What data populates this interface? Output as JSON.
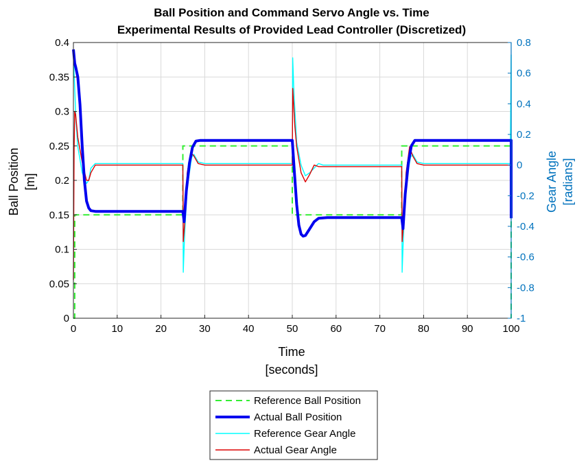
{
  "chart_data": {
    "type": "line",
    "title": "Ball Position and Command Servo Angle vs. Time",
    "subtitle": "Experimental Results of Provided Lead Controller (Discretized)",
    "xlabel": "Time",
    "xlabel_unit": "[seconds]",
    "ylabel": "Ball Position",
    "ylabel_unit": "[m]",
    "y2label": "Gear Angle",
    "y2label_unit": "[radians]",
    "xlim": [
      0,
      100
    ],
    "ylim": [
      0,
      0.4
    ],
    "y2lim": [
      -1,
      0.8
    ],
    "xticks": [
      "0",
      "10",
      "20",
      "30",
      "40",
      "50",
      "60",
      "70",
      "80",
      "90",
      "100"
    ],
    "yticks": [
      "0",
      "0.05",
      "0.1",
      "0.15",
      "0.2",
      "0.25",
      "0.3",
      "0.35",
      "0.4"
    ],
    "y2ticks": [
      "-1",
      "-0.8",
      "-0.6",
      "-0.4",
      "-0.2",
      "0",
      "0.2",
      "0.4",
      "0.6",
      "0.8"
    ],
    "grid": true,
    "legend_position": "bottom-outside",
    "series": [
      {
        "name": "Reference Ball Position",
        "axis": "left",
        "color": "#33ee33",
        "style": "dashed",
        "x": [
          0,
          0.3,
          0.3,
          25,
          25,
          50,
          50,
          75,
          75,
          100,
          100
        ],
        "y": [
          0,
          0,
          0.15,
          0.15,
          0.25,
          0.25,
          0.15,
          0.15,
          0.25,
          0.25,
          0
        ]
      },
      {
        "name": "Actual Ball Position",
        "axis": "left",
        "color": "#0000ee",
        "style": "thick",
        "x": [
          0,
          0.3,
          0.5,
          1,
          1.5,
          2,
          2.5,
          3,
          3.5,
          4,
          5,
          8,
          25,
          25.3,
          25.8,
          26.5,
          27.2,
          28,
          29,
          35,
          50,
          50.5,
          51,
          51.5,
          52,
          52.5,
          53,
          54,
          55,
          56,
          58,
          60,
          75,
          75.3,
          75.8,
          76.5,
          77.2,
          78,
          79,
          85,
          100,
          100,
          100.1
        ],
        "y": [
          0.39,
          0.37,
          0.365,
          0.35,
          0.31,
          0.25,
          0.2,
          0.17,
          0.16,
          0.156,
          0.155,
          0.155,
          0.155,
          0.14,
          0.185,
          0.225,
          0.248,
          0.257,
          0.258,
          0.258,
          0.258,
          0.21,
          0.165,
          0.135,
          0.122,
          0.119,
          0.12,
          0.13,
          0.14,
          0.145,
          0.146,
          0.146,
          0.146,
          0.13,
          0.18,
          0.225,
          0.25,
          0.258,
          0.258,
          0.258,
          0.258,
          0.145,
          0.145
        ]
      },
      {
        "name": "Reference Gear Angle",
        "axis": "right",
        "color": "#00ffff",
        "style": "solid",
        "x": [
          0,
          0.3,
          0.6,
          1,
          2,
          3,
          3.5,
          4,
          5,
          7,
          25,
          25.1,
          25.4,
          26,
          27,
          27.5,
          28.5,
          30,
          50,
          50.1,
          50.4,
          51,
          52,
          53,
          54,
          56,
          57,
          60,
          75,
          75.1,
          75.4,
          76,
          77,
          77.5,
          78.5,
          80,
          99.8,
          100,
          100.1
        ],
        "y": [
          0.72,
          0.5,
          0.28,
          0.12,
          -0.05,
          -0.12,
          -0.1,
          -0.02,
          0.01,
          0.01,
          0.01,
          -0.7,
          -0.45,
          -0.15,
          0.05,
          0.07,
          0.02,
          0.01,
          0.01,
          0.7,
          0.45,
          0.15,
          0.0,
          -0.07,
          -0.05,
          0.01,
          0.0,
          0.0,
          0.0,
          -0.7,
          -0.45,
          -0.12,
          0.05,
          0.07,
          0.02,
          0.01,
          0.01,
          0.72,
          0.0
        ]
      },
      {
        "name": "Actual Gear Angle",
        "axis": "right",
        "color": "#dd0000",
        "style": "solid",
        "x": [
          0,
          0.15,
          0.3,
          0.5,
          1,
          2,
          3,
          3.5,
          4,
          5,
          7,
          25,
          25.1,
          25.5,
          26,
          26.8,
          27.5,
          28.5,
          30,
          50,
          50.1,
          50.3,
          50.6,
          51,
          52,
          53,
          54,
          55,
          56,
          58,
          60,
          75,
          75.1,
          75.5,
          76,
          76.8,
          77.5,
          78.5,
          80,
          100
        ],
        "y": [
          -0.75,
          0.1,
          0.35,
          0.33,
          0.18,
          0.02,
          -0.1,
          -0.1,
          -0.05,
          0.0,
          0.0,
          0.0,
          -0.5,
          -0.35,
          -0.05,
          0.08,
          0.06,
          0.01,
          0.0,
          0.0,
          0.5,
          0.4,
          0.25,
          0.12,
          -0.05,
          -0.11,
          -0.06,
          0.0,
          -0.01,
          -0.01,
          -0.01,
          -0.01,
          -0.5,
          -0.35,
          -0.05,
          0.12,
          0.06,
          0.01,
          0.0,
          0.0
        ]
      }
    ]
  }
}
